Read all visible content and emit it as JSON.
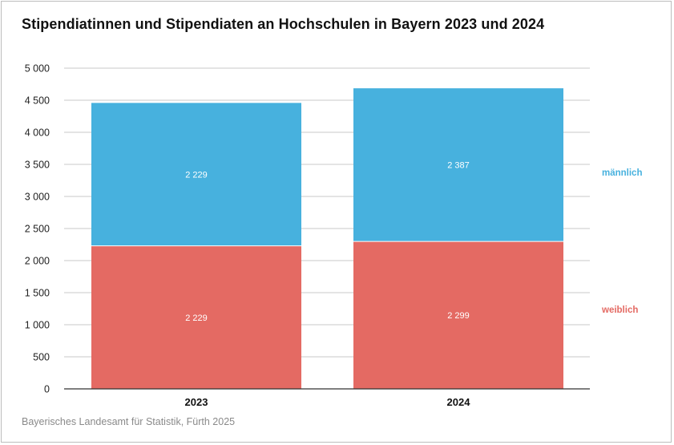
{
  "chart_data": {
    "type": "bar",
    "stacked": true,
    "title": "Stipendiatinnen und Stipendiaten an Hochschulen in Bayern 2023 und 2024",
    "categories": [
      "2023",
      "2024"
    ],
    "series": [
      {
        "name": "weiblich",
        "values": [
          2229,
          2299
        ],
        "labels": [
          "2 229",
          "2 299"
        ],
        "color": "#e46a63"
      },
      {
        "name": "männlich",
        "values": [
          2229,
          2387
        ],
        "labels": [
          "2 229",
          "2 387"
        ],
        "color": "#47b1de"
      }
    ],
    "ylim": [
      0,
      5000
    ],
    "yticks": [
      0,
      500,
      1000,
      1500,
      2000,
      2500,
      3000,
      3500,
      4000,
      4500,
      5000
    ],
    "ytick_labels": [
      "0",
      "500",
      "1 000",
      "1 500",
      "2 000",
      "2 500",
      "3 000",
      "3 500",
      "4 000",
      "4 500",
      "5 000"
    ],
    "xlabel": "",
    "ylabel": "",
    "grid": true,
    "legend": "right"
  },
  "source": "Bayerisches Landesamt für Statistik, Fürth 2025"
}
